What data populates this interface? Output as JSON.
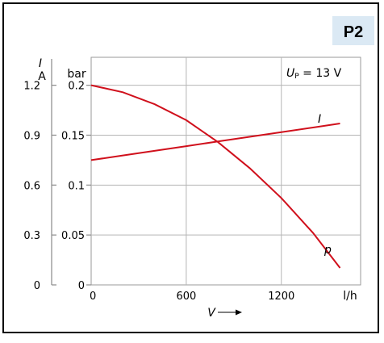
{
  "badge": "P2",
  "annotation": {
    "symbol": "U",
    "subscript": "P",
    "text": " = 13 V"
  },
  "chart_data": {
    "type": "line",
    "x_unit": "l/h",
    "x_label": "V",
    "x_ticks": [
      0,
      600,
      1200
    ],
    "xlim": [
      0,
      1700
    ],
    "left_axis": {
      "label": "I",
      "unit": "A",
      "ticks": [
        0,
        0.3,
        0.6,
        0.9,
        1.2
      ],
      "tick_labels": [
        "0",
        "0.3",
        "0.6",
        "0.9",
        "1.2"
      ],
      "lim": [
        0,
        1.368
      ]
    },
    "right_axis": {
      "unit": "bar",
      "ticks": [
        0,
        0.05,
        0.1,
        0.15,
        0.2
      ],
      "tick_labels": [
        "0",
        "0.05",
        "0.1",
        "0.15",
        "0.2"
      ],
      "lim": [
        0,
        0.228
      ]
    },
    "grid": true,
    "series": [
      {
        "name": "I",
        "axis": "left",
        "color": "#d0101c",
        "x": [
          0,
          200,
          400,
          600,
          800,
          1000,
          1200,
          1400,
          1570
        ],
        "y": [
          0.75,
          0.778,
          0.806,
          0.834,
          0.862,
          0.89,
          0.918,
          0.946,
          0.97
        ]
      },
      {
        "name": "p",
        "axis": "right",
        "color": "#d0101c",
        "x": [
          0,
          200,
          400,
          600,
          800,
          1000,
          1200,
          1400,
          1570
        ],
        "y": [
          0.2,
          0.193,
          0.181,
          0.165,
          0.143,
          0.117,
          0.087,
          0.052,
          0.017
        ]
      }
    ]
  }
}
